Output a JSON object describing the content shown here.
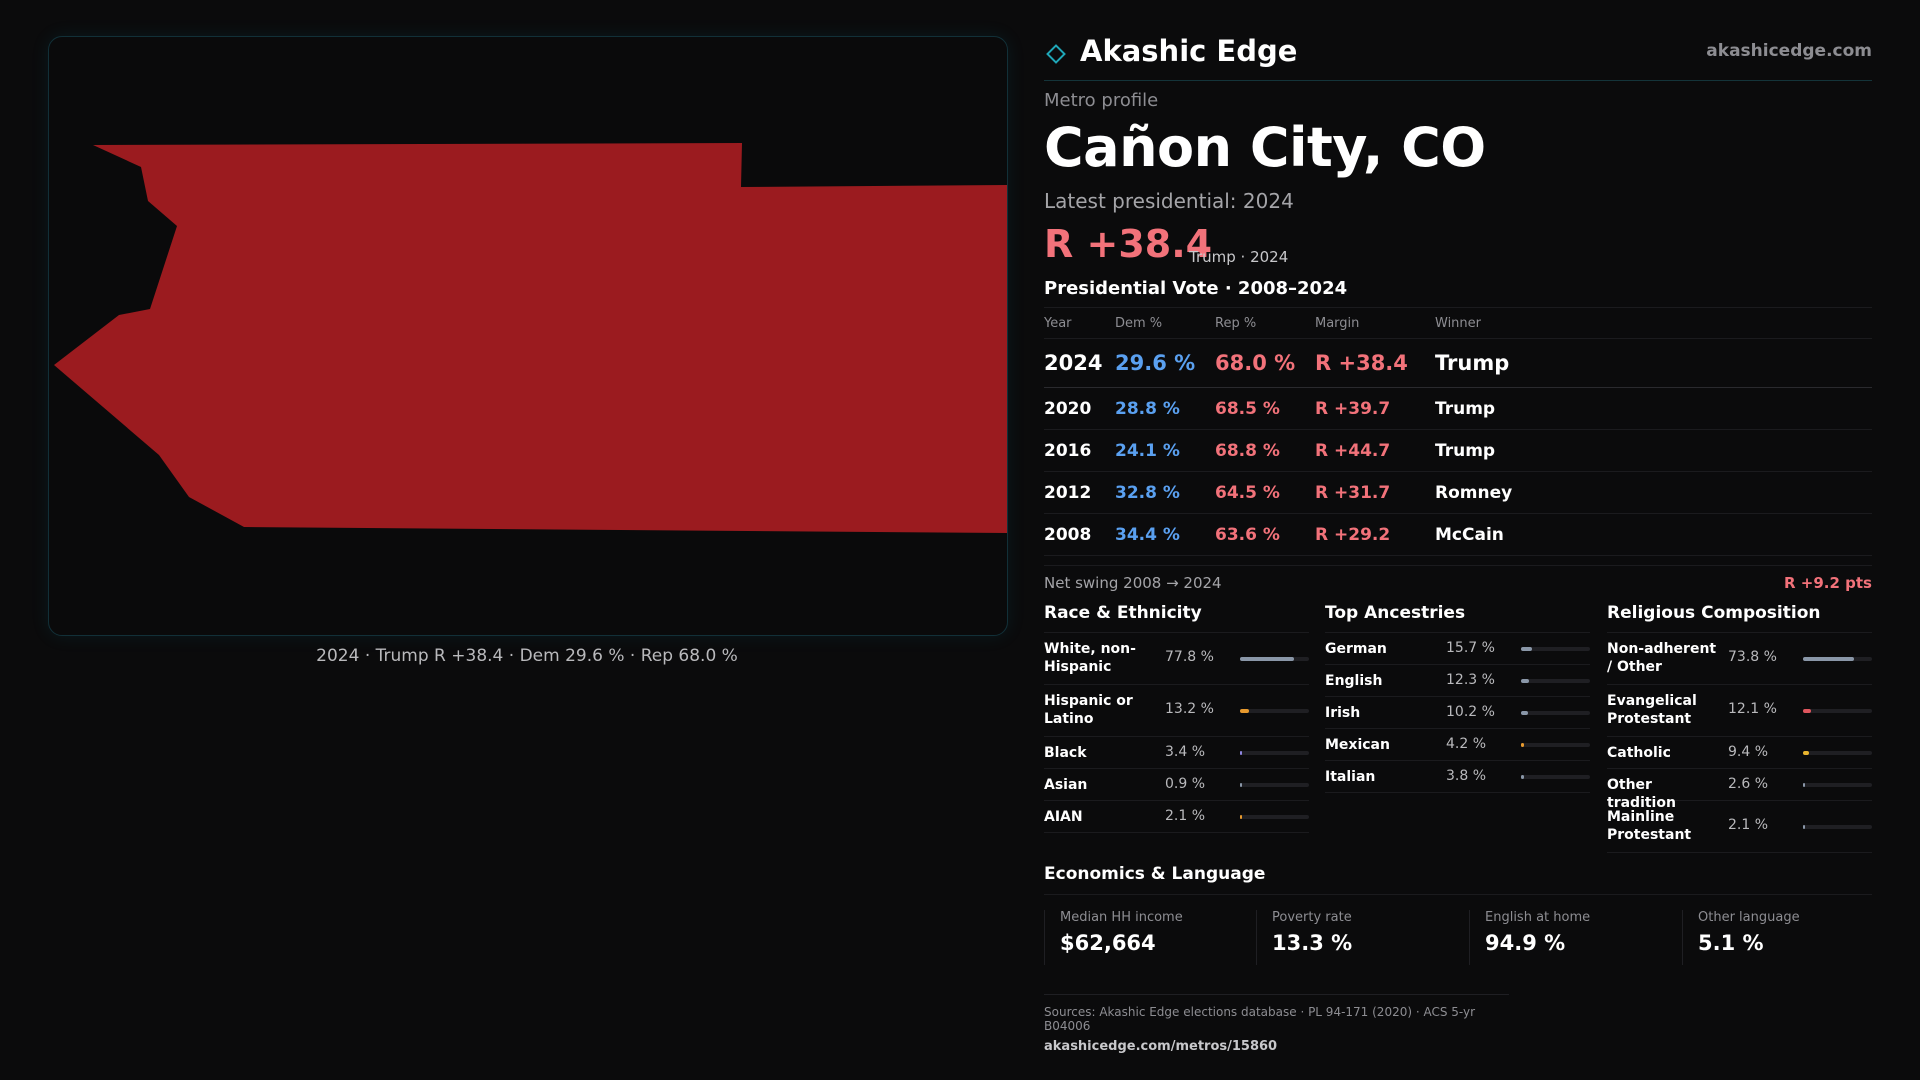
{
  "brand": {
    "name": "Akashic Edge",
    "url": "akashicedge.com"
  },
  "profile": {
    "kicker": "Metro profile",
    "title": "Cañon City, CO",
    "latest_label": "Latest presidential: 2024",
    "margin": "R +38.4",
    "margin_sub": "Trump · 2024"
  },
  "map": {
    "caption": "2024 · Trump R +38.4 · Dem 29.6 % · Rep 68.0 %",
    "fill_color": "#9b1b1f"
  },
  "votes": {
    "title": "Presidential Vote · 2008–2024",
    "headers": [
      "Year",
      "Dem %",
      "Rep %",
      "Margin",
      "Winner"
    ],
    "rows": [
      {
        "year": "2024",
        "dem": "29.6 %",
        "rep": "68.0 %",
        "margin": "R +38.4",
        "winner": "Trump"
      },
      {
        "year": "2020",
        "dem": "28.8 %",
        "rep": "68.5 %",
        "margin": "R +39.7",
        "winner": "Trump"
      },
      {
        "year": "2016",
        "dem": "24.1 %",
        "rep": "68.8 %",
        "margin": "R +44.7",
        "winner": "Trump"
      },
      {
        "year": "2012",
        "dem": "32.8 %",
        "rep": "64.5 %",
        "margin": "R +31.7",
        "winner": "Romney"
      },
      {
        "year": "2008",
        "dem": "34.4 %",
        "rep": "63.6 %",
        "margin": "R +29.2",
        "winner": "McCain"
      }
    ]
  },
  "swing": {
    "label": "Net swing 2008 → 2024",
    "value": "R +9.2 pts"
  },
  "race": {
    "title": "Race & Ethnicity",
    "items": [
      {
        "label": "White, non-Hispanic",
        "pct": "77.8 %",
        "value": 77.8,
        "color": "#8a97a8"
      },
      {
        "label": "Hispanic or Latino",
        "pct": "13.2 %",
        "value": 13.2,
        "color": "#e89a2e"
      },
      {
        "label": "Black",
        "pct": "3.4 %",
        "value": 3.4,
        "color": "#8f86e0"
      },
      {
        "label": "Asian",
        "pct": "0.9 %",
        "value": 0.9,
        "color": "#8a97a8"
      },
      {
        "label": "AIAN",
        "pct": "2.1 %",
        "value": 2.1,
        "color": "#e89a2e"
      }
    ]
  },
  "ancestry": {
    "title": "Top Ancestries",
    "items": [
      {
        "label": "German",
        "pct": "15.7 %",
        "value": 15.7,
        "color": "#8a97a8"
      },
      {
        "label": "English",
        "pct": "12.3 %",
        "value": 12.3,
        "color": "#8a97a8"
      },
      {
        "label": "Irish",
        "pct": "10.2 %",
        "value": 10.2,
        "color": "#8a97a8"
      },
      {
        "label": "Mexican",
        "pct": "4.2 %",
        "value": 4.2,
        "color": "#e89a2e"
      },
      {
        "label": "Italian",
        "pct": "3.8 %",
        "value": 3.8,
        "color": "#8a97a8"
      }
    ]
  },
  "religion": {
    "title": "Religious Composition",
    "items": [
      {
        "label": "Non-adherent / Other",
        "pct": "73.8 %",
        "value": 73.8,
        "color": "#8a97a8"
      },
      {
        "label": "Evangelical Protestant",
        "pct": "12.1 %",
        "value": 12.1,
        "color": "#e0565e"
      },
      {
        "label": "Catholic",
        "pct": "9.4 %",
        "value": 9.4,
        "color": "#e8b42e"
      },
      {
        "label": "Other tradition",
        "pct": "2.6 %",
        "value": 2.6,
        "color": "#8a97a8"
      },
      {
        "label": "Mainline Protestant",
        "pct": "2.1 %",
        "value": 2.1,
        "color": "#8a97a8"
      }
    ]
  },
  "economics": {
    "title": "Economics & Language",
    "stats": [
      {
        "label": "Median HH income",
        "value": "$62,664"
      },
      {
        "label": "Poverty rate",
        "value": "13.3 %"
      },
      {
        "label": "English at home",
        "value": "94.9 %"
      },
      {
        "label": "Other language",
        "value": "5.1 %"
      }
    ]
  },
  "sources": {
    "text": "Sources: Akashic Edge elections database · PL 94-171 (2020) · ACS 5-yr B04006",
    "url": "akashicedge.com/metros/15860"
  }
}
